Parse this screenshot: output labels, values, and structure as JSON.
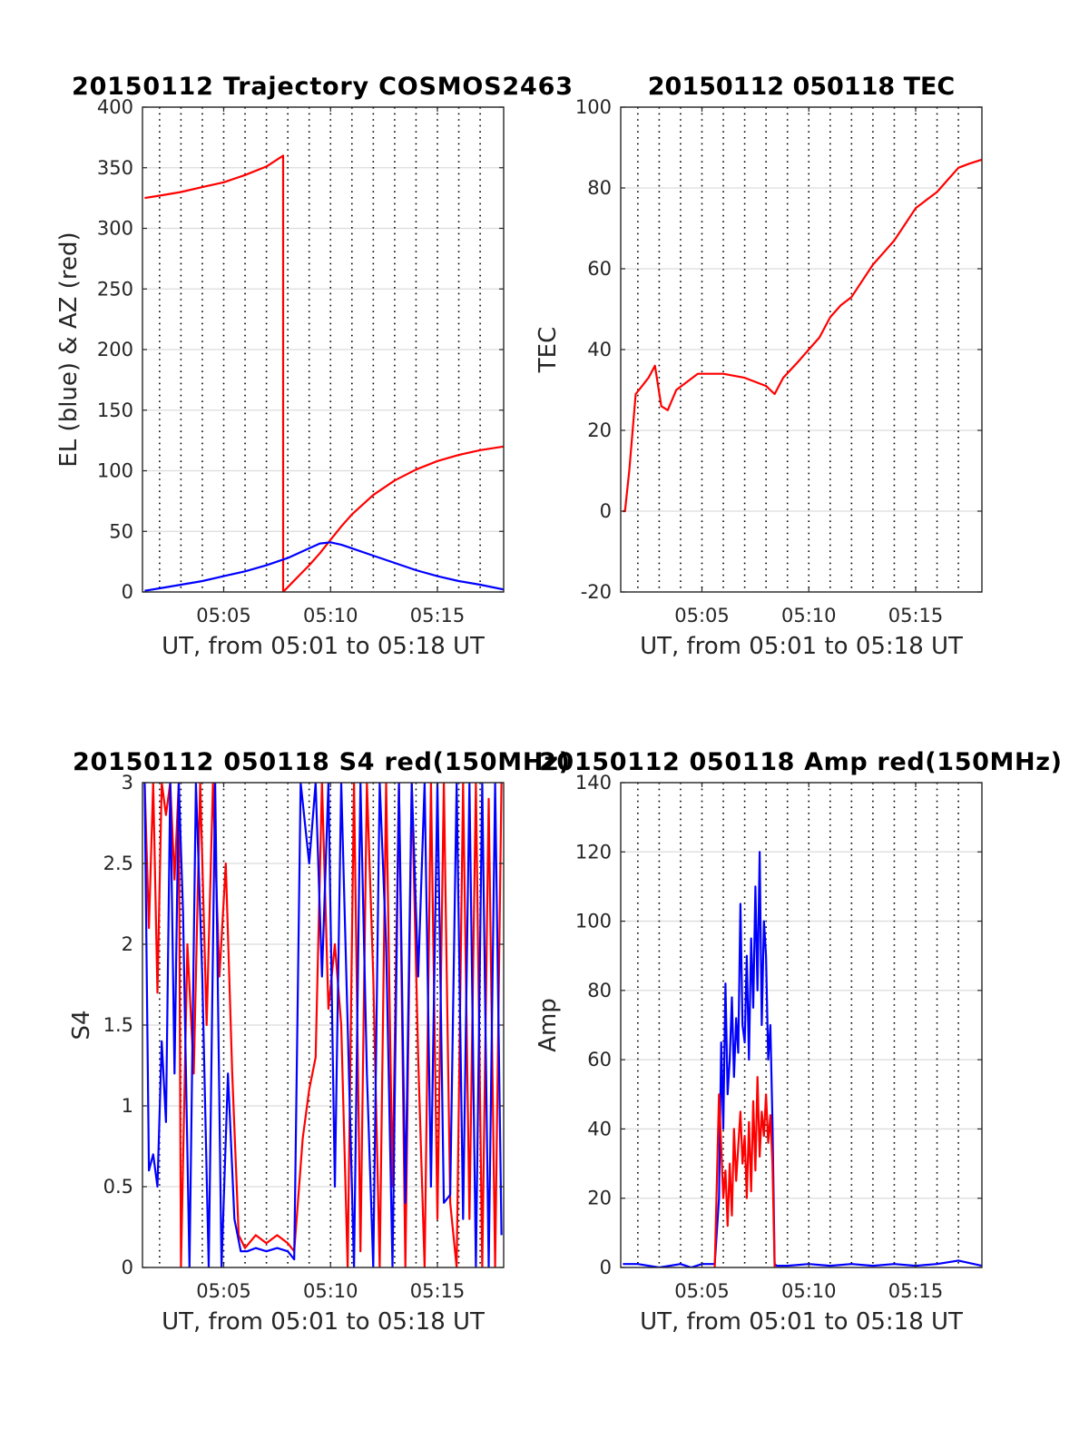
{
  "chart_data": [
    {
      "type": "line",
      "title": "20150112 Trajectory COSMOS2463",
      "xlabel": "UT, from 05:01 to 05:18 UT",
      "ylabel": "EL (blue) & AZ (red)",
      "xlim": [
        1.2,
        18.1
      ],
      "ylim": [
        0,
        400
      ],
      "yticks": [
        0,
        50,
        100,
        150,
        200,
        250,
        300,
        350,
        400
      ],
      "xticks": [
        {
          "v": 5,
          "label": "05:05"
        },
        {
          "v": 10,
          "label": "05:10"
        },
        {
          "v": 15,
          "label": "05:15"
        }
      ],
      "grid": true,
      "series": [
        {
          "color": "#ff0000",
          "x": [
            1.3,
            2,
            3,
            4,
            5,
            6,
            7,
            7.78,
            7.78,
            8,
            8.5,
            9,
            9.5,
            10,
            10.5,
            11,
            12,
            13,
            14,
            15,
            16,
            17,
            18.1
          ],
          "y": [
            325,
            327,
            330,
            334,
            338,
            344,
            351,
            360,
            0,
            4,
            13,
            22,
            32,
            43,
            54,
            64,
            80,
            92,
            101,
            108,
            113,
            117,
            120
          ]
        },
        {
          "color": "#0000ff",
          "x": [
            1.3,
            2,
            3,
            4,
            5,
            6,
            7,
            8,
            9,
            9.5,
            10,
            10.5,
            11,
            12,
            13,
            14,
            15,
            16,
            17,
            18.1
          ],
          "y": [
            1,
            3,
            6,
            9,
            13,
            17,
            22,
            28,
            36,
            40,
            41,
            39,
            36,
            30,
            24,
            18,
            13,
            9,
            6,
            2
          ]
        }
      ]
    },
    {
      "type": "line",
      "title": "20150112 050118 TEC",
      "xlabel": "UT, from 05:01 to 05:18 UT",
      "ylabel": "TEC",
      "xlim": [
        1.2,
        18.1
      ],
      "ylim": [
        -20,
        100
      ],
      "yticks": [
        -20,
        0,
        20,
        40,
        60,
        80,
        100
      ],
      "xticks": [
        {
          "v": 5,
          "label": "05:05"
        },
        {
          "v": 10,
          "label": "05:10"
        },
        {
          "v": 15,
          "label": "05:15"
        }
      ],
      "grid": true,
      "series": [
        {
          "color": "#ff0000",
          "x": [
            1.3,
            1.4,
            1.6,
            1.9,
            2.2,
            2.5,
            2.8,
            3.1,
            3.4,
            3.8,
            4.3,
            4.8,
            5.2,
            6,
            7,
            8,
            8.4,
            8.8,
            9.5,
            10,
            10.5,
            11,
            11.5,
            12,
            12.5,
            13,
            13.5,
            14,
            14.5,
            15,
            15.5,
            16,
            16.5,
            17,
            17.5,
            18.1
          ],
          "y": [
            0,
            0,
            10,
            29,
            31,
            33,
            36,
            26,
            25,
            30,
            32,
            34,
            34,
            34,
            33,
            31,
            29,
            33,
            37,
            40,
            43,
            48,
            51,
            53,
            57,
            61,
            64,
            67,
            71,
            75,
            77,
            79,
            82,
            85,
            86,
            87
          ]
        }
      ]
    },
    {
      "type": "line",
      "title": "20150112 050118 S4 red(150MHz)",
      "xlabel": "UT, from 05:01 to 05:18 UT",
      "ylabel": "S4",
      "xlim": [
        1.2,
        18.1
      ],
      "ylim": [
        0,
        3
      ],
      "yticks": [
        0,
        0.5,
        1,
        1.5,
        2,
        2.5,
        3
      ],
      "xticks": [
        {
          "v": 5,
          "label": "05:05"
        },
        {
          "v": 10,
          "label": "05:10"
        },
        {
          "v": 15,
          "label": "05:15"
        }
      ],
      "grid": true,
      "series": [
        {
          "color": "#ff0000",
          "x": [
            1.3,
            1.5,
            1.7,
            1.9,
            2.1,
            2.3,
            2.5,
            2.7,
            2.9,
            3.0,
            3.3,
            3.6,
            3.9,
            4.2,
            4.5,
            4.8,
            5.1,
            5.4,
            5.7,
            6.0,
            6.5,
            7.0,
            7.5,
            8.0,
            8.3,
            8.7,
            9.0,
            9.3,
            9.6,
            9.9,
            10.2,
            10.5,
            10.8,
            11.1,
            11.4,
            11.7,
            12.0,
            12.3,
            12.6,
            12.9,
            13.2,
            13.5,
            13.8,
            14.1,
            14.4,
            14.7,
            15.0,
            15.3,
            15.6,
            15.9,
            16.2,
            16.5,
            16.8,
            17.1,
            17.4,
            17.7,
            18.0
          ],
          "y": [
            3,
            2.1,
            3,
            1.7,
            3,
            2.8,
            3,
            2.4,
            3,
            0,
            2,
            1.2,
            3,
            1.5,
            3,
            1.8,
            2.5,
            1.2,
            0.2,
            0.12,
            0.2,
            0.15,
            0.2,
            0.15,
            0.1,
            0.8,
            1.1,
            1.3,
            3,
            1.6,
            2,
            1.5,
            0,
            3,
            0.1,
            3,
            1.8,
            0,
            3,
            0.5,
            3,
            0,
            3,
            1.3,
            0,
            3,
            0.3,
            3,
            0.4,
            0,
            3,
            0.3,
            3,
            0,
            2.9,
            0,
            3
          ]
        },
        {
          "color": "#0000ff",
          "x": [
            1.3,
            1.5,
            1.7,
            1.9,
            2.1,
            2.3,
            2.5,
            2.7,
            2.9,
            3.1,
            3.4,
            3.7,
            4.0,
            4.3,
            4.6,
            4.9,
            5.2,
            5.5,
            5.8,
            6.1,
            6.5,
            7.0,
            7.5,
            8.0,
            8.3,
            8.6,
            9.0,
            9.3,
            9.6,
            9.9,
            10.2,
            10.5,
            10.8,
            11.1,
            11.4,
            11.7,
            12.0,
            12.3,
            12.6,
            12.9,
            13.2,
            13.5,
            13.8,
            14.1,
            14.4,
            14.7,
            15.0,
            15.3,
            15.6,
            15.9,
            16.2,
            16.5,
            16.8,
            17.1,
            17.4,
            17.7,
            18.0
          ],
          "y": [
            3,
            0.6,
            0.7,
            0.5,
            1.4,
            0.9,
            3,
            1.2,
            3,
            2.2,
            0,
            3,
            1.8,
            0,
            3,
            0,
            1.2,
            0.3,
            0.1,
            0.1,
            0.12,
            0.1,
            0.12,
            0.1,
            0.05,
            3,
            2.5,
            3,
            1.8,
            3,
            0.5,
            3,
            1.5,
            0,
            3,
            1.2,
            0,
            3,
            2,
            0,
            3,
            0.4,
            3,
            1.8,
            3,
            0.5,
            3,
            0.4,
            0.45,
            3,
            0.3,
            3,
            0,
            3,
            0,
            3,
            0.2
          ]
        }
      ]
    },
    {
      "type": "line",
      "title": "20150112 050118 Amp red(150MHz)",
      "xlabel": "UT, from 05:01 to 05:18 UT",
      "ylabel": "Amp",
      "xlim": [
        1.2,
        18.1
      ],
      "ylim": [
        0,
        140
      ],
      "yticks": [
        0,
        20,
        40,
        60,
        80,
        100,
        120,
        140
      ],
      "xticks": [
        {
          "v": 5,
          "label": "05:05"
        },
        {
          "v": 10,
          "label": "05:10"
        },
        {
          "v": 15,
          "label": "05:15"
        }
      ],
      "grid": true,
      "series": [
        {
          "color": "#0000ff",
          "x": [
            1.3,
            2,
            3,
            4,
            4.5,
            5,
            5.6,
            5.8,
            5.9,
            6.0,
            6.1,
            6.2,
            6.3,
            6.4,
            6.5,
            6.6,
            6.7,
            6.8,
            6.9,
            7.0,
            7.1,
            7.2,
            7.3,
            7.4,
            7.5,
            7.6,
            7.7,
            7.8,
            7.9,
            8.0,
            8.1,
            8.2,
            8.3,
            8.4,
            8.5,
            9,
            10,
            11,
            12,
            13,
            14,
            15,
            16,
            17,
            18.1
          ],
          "y": [
            1,
            1,
            0,
            1,
            0,
            1,
            1,
            20,
            65,
            40,
            82,
            50,
            60,
            78,
            55,
            72,
            62,
            105,
            70,
            65,
            90,
            60,
            95,
            75,
            110,
            80,
            120,
            70,
            100,
            90,
            60,
            70,
            42,
            1,
            0.5,
            0.5,
            1,
            0.5,
            1,
            0.5,
            1,
            0.5,
            1,
            2,
            0.5
          ]
        },
        {
          "color": "#ff0000",
          "x": [
            5.6,
            5.8,
            5.9,
            6.0,
            6.1,
            6.2,
            6.3,
            6.4,
            6.5,
            6.6,
            6.7,
            6.8,
            6.9,
            7.0,
            7.1,
            7.2,
            7.3,
            7.4,
            7.5,
            7.6,
            7.7,
            7.8,
            7.9,
            8.0,
            8.1,
            8.2,
            8.3,
            8.4
          ],
          "y": [
            0,
            50,
            35,
            20,
            28,
            12,
            30,
            15,
            40,
            25,
            35,
            45,
            30,
            38,
            20,
            42,
            22,
            48,
            28,
            55,
            32,
            45,
            38,
            50,
            36,
            44,
            30,
            0
          ]
        }
      ]
    }
  ]
}
